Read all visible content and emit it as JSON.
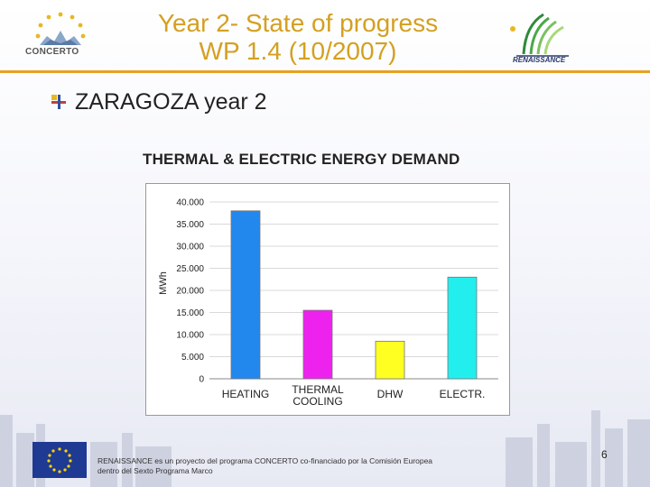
{
  "header": {
    "title_line1": "Year 2- State of progress",
    "title_line2": "WP 1.4  (10/2007)",
    "logo_left_text": "CONCERTO",
    "logo_right_text": "RENAISSANCE"
  },
  "bullet": {
    "text": "ZARAGOZA year 2"
  },
  "chart_data": {
    "type": "bar",
    "title": "THERMAL & ELECTRIC ENERGY DEMAND",
    "ylabel": "MWh",
    "xlabel": "",
    "ylim": [
      0,
      40000
    ],
    "yticks": [
      "0",
      "5.000",
      "10.000",
      "15.000",
      "20.000",
      "25.000",
      "30.000",
      "35.000",
      "40.000"
    ],
    "grid": true,
    "categories": [
      {
        "line1": "HEATING",
        "line2": ""
      },
      {
        "line1": "THERMAL",
        "line2": "COOLING"
      },
      {
        "line1": "DHW",
        "line2": ""
      },
      {
        "line1": "ELECTR.",
        "line2": ""
      }
    ],
    "values": [
      38000,
      15500,
      8500,
      23000
    ],
    "colors": [
      "#2288ee",
      "#ee22ee",
      "#ffff22",
      "#22eeee"
    ]
  },
  "footer": {
    "text_line1": "RENAISSANCE es un proyecto del programa CONCERTO co-financiado por la Comisión Europea",
    "text_line2": "dentro del Sexto Programa Marco",
    "page_number": "6"
  }
}
